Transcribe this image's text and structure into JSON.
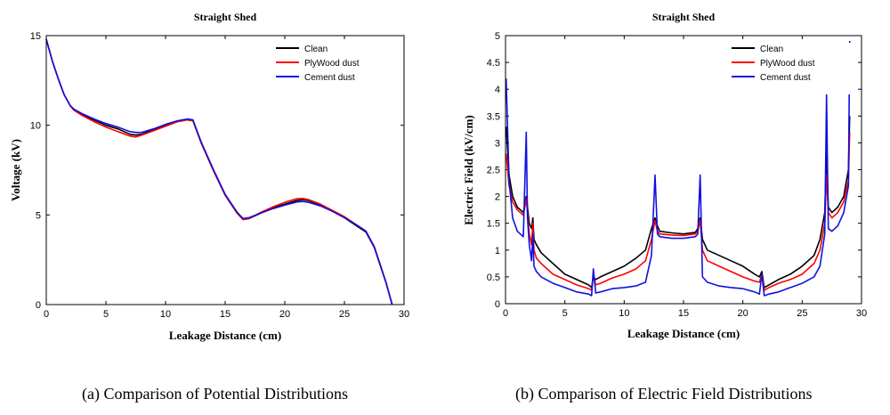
{
  "figure": {
    "captions": [
      "(a)   Comparison of Potential Distributions",
      "(b)   Comparison of Electric Field Distributions"
    ]
  },
  "series_colors": {
    "Clean": "#000000",
    "PlyWood dust": "#ff0000",
    "Cement dust": "#1010e0"
  },
  "chart_data": [
    {
      "type": "line",
      "title": "Straight Shed",
      "xlabel": "Leakage Distance  (cm)",
      "ylabel": "Voltage  (kV)",
      "xlim": [
        0,
        30
      ],
      "ylim": [
        0,
        15
      ],
      "xticks": [
        0,
        5,
        10,
        15,
        20,
        25,
        30
      ],
      "yticks": [
        0,
        5,
        10,
        15
      ],
      "grid": false,
      "legend_position": "top-right",
      "series": [
        {
          "name": "Clean",
          "x": [
            0,
            0.5,
            1.0,
            1.5,
            2.0,
            2.3,
            3,
            4,
            5,
            6,
            7,
            7.5,
            8,
            9,
            10,
            11,
            11.8,
            12.3,
            13,
            14,
            15,
            16,
            16.5,
            17,
            18,
            19,
            20,
            21,
            21.5,
            22,
            23,
            24,
            25,
            26,
            26.8,
            27.5,
            28,
            28.5,
            29
          ],
          "y": [
            14.8,
            13.6,
            12.6,
            11.7,
            11.1,
            10.9,
            10.6,
            10.3,
            10.0,
            9.8,
            9.5,
            9.45,
            9.5,
            9.75,
            10.0,
            10.2,
            10.3,
            10.25,
            9.0,
            7.5,
            6.1,
            5.1,
            4.75,
            4.8,
            5.1,
            5.4,
            5.6,
            5.8,
            5.85,
            5.8,
            5.55,
            5.2,
            4.85,
            4.4,
            4.05,
            3.2,
            2.2,
            1.2,
            0
          ]
        },
        {
          "name": "PlyWood dust",
          "x": [
            0,
            0.5,
            1.0,
            1.5,
            2.0,
            2.3,
            3,
            4,
            5,
            6,
            7,
            7.5,
            8,
            9,
            10,
            11,
            11.8,
            12.3,
            13,
            14,
            15,
            16,
            16.5,
            17,
            18,
            19,
            20,
            21,
            21.5,
            22,
            23,
            24,
            25,
            26,
            26.8,
            27.5,
            28,
            28.5,
            29
          ],
          "y": [
            14.8,
            13.6,
            12.6,
            11.7,
            11.1,
            10.85,
            10.55,
            10.2,
            9.9,
            9.65,
            9.4,
            9.35,
            9.45,
            9.7,
            9.95,
            10.2,
            10.3,
            10.25,
            9.0,
            7.5,
            6.1,
            5.1,
            4.75,
            4.8,
            5.15,
            5.45,
            5.7,
            5.9,
            5.92,
            5.85,
            5.6,
            5.25,
            4.9,
            4.45,
            4.1,
            3.25,
            2.25,
            1.2,
            0
          ]
        },
        {
          "name": "Cement dust",
          "x": [
            0,
            0.5,
            1.0,
            1.5,
            2.0,
            2.3,
            3,
            4,
            5,
            6,
            7,
            7.5,
            8,
            9,
            10,
            11,
            11.8,
            12.3,
            13,
            14,
            15,
            16,
            16.5,
            17,
            18,
            19,
            20,
            21,
            21.5,
            22,
            23,
            24,
            25,
            26,
            26.8,
            27.5,
            28,
            28.5,
            29
          ],
          "y": [
            14.8,
            13.6,
            12.6,
            11.7,
            11.1,
            10.9,
            10.65,
            10.35,
            10.1,
            9.9,
            9.65,
            9.6,
            9.6,
            9.8,
            10.05,
            10.25,
            10.35,
            10.3,
            9.05,
            7.55,
            6.15,
            5.15,
            4.8,
            4.85,
            5.1,
            5.35,
            5.55,
            5.72,
            5.75,
            5.7,
            5.5,
            5.2,
            4.85,
            4.45,
            4.1,
            3.2,
            2.2,
            1.2,
            0
          ]
        }
      ]
    },
    {
      "type": "line",
      "title": "Straight Shed",
      "xlabel": "Leakage Distance  (cm)",
      "ylabel": "Electric Field  (kV/cm)",
      "xlim": [
        0,
        30
      ],
      "ylim": [
        0,
        5
      ],
      "xticks": [
        0,
        5,
        10,
        15,
        20,
        25,
        30
      ],
      "yticks": [
        0,
        0.5,
        1,
        1.5,
        2,
        2.5,
        3,
        3.5,
        4,
        4.5,
        5
      ],
      "grid": false,
      "legend_position": "top-right",
      "series": [
        {
          "name": "Clean",
          "x": [
            0.05,
            0.3,
            0.6,
            1.0,
            1.5,
            1.75,
            1.85,
            2.0,
            2.2,
            2.3,
            2.4,
            2.6,
            3,
            4,
            5,
            6,
            7.0,
            7.25,
            7.4,
            7.6,
            8,
            9,
            10,
            11,
            11.8,
            12.3,
            12.6,
            12.8,
            13,
            14,
            15,
            16,
            16.2,
            16.4,
            16.6,
            17,
            18,
            19,
            20,
            21,
            21.4,
            21.6,
            21.8,
            22.2,
            23,
            24,
            25,
            26,
            26.5,
            26.9,
            27.05,
            27.2,
            27.5,
            28,
            28.5,
            28.9,
            29.0
          ],
          "y": [
            3.3,
            2.4,
            2.0,
            1.8,
            1.7,
            2.0,
            1.8,
            1.5,
            1.4,
            1.6,
            1.2,
            1.1,
            0.95,
            0.75,
            0.55,
            0.45,
            0.35,
            0.3,
            0.5,
            0.45,
            0.5,
            0.6,
            0.7,
            0.85,
            1.0,
            1.4,
            1.6,
            1.45,
            1.35,
            1.32,
            1.3,
            1.33,
            1.4,
            1.6,
            1.2,
            1.0,
            0.9,
            0.8,
            0.7,
            0.55,
            0.5,
            0.6,
            0.3,
            0.35,
            0.45,
            0.55,
            0.7,
            0.9,
            1.2,
            1.7,
            2.8,
            1.8,
            1.7,
            1.8,
            2.0,
            2.5,
            3.5
          ]
        },
        {
          "name": "PlyWood dust",
          "x": [
            0.05,
            0.3,
            0.6,
            1.0,
            1.5,
            1.75,
            1.85,
            2.0,
            2.2,
            2.3,
            2.4,
            2.6,
            3,
            4,
            5,
            6,
            7.0,
            7.25,
            7.4,
            7.6,
            8,
            9,
            10,
            11,
            11.8,
            12.3,
            12.6,
            12.8,
            13,
            14,
            15,
            16,
            16.2,
            16.4,
            16.6,
            17,
            18,
            19,
            20,
            21,
            21.4,
            21.6,
            21.8,
            22.2,
            23,
            24,
            25,
            26,
            26.5,
            26.9,
            27.05,
            27.2,
            27.5,
            28,
            28.5,
            28.9,
            29.0
          ],
          "y": [
            2.8,
            2.2,
            1.9,
            1.75,
            1.65,
            1.95,
            1.7,
            1.3,
            1.1,
            1.5,
            1.0,
            0.85,
            0.75,
            0.55,
            0.45,
            0.35,
            0.28,
            0.25,
            0.55,
            0.35,
            0.38,
            0.48,
            0.55,
            0.65,
            0.8,
            1.2,
            1.55,
            1.35,
            1.3,
            1.28,
            1.27,
            1.3,
            1.35,
            1.55,
            1.0,
            0.8,
            0.7,
            0.6,
            0.5,
            0.42,
            0.4,
            0.55,
            0.25,
            0.3,
            0.38,
            0.45,
            0.55,
            0.75,
            1.0,
            1.5,
            2.4,
            1.7,
            1.6,
            1.7,
            1.9,
            2.3,
            3.2
          ]
        },
        {
          "name": "Cement dust",
          "x": [
            0.05,
            0.3,
            0.6,
            1.0,
            1.5,
            1.75,
            1.85,
            2.0,
            2.2,
            2.3,
            2.4,
            2.6,
            3,
            4,
            5,
            6,
            7.0,
            7.25,
            7.4,
            7.6,
            8,
            9,
            10,
            11,
            11.8,
            12.3,
            12.6,
            12.8,
            13,
            14,
            15,
            16,
            16.2,
            16.4,
            16.6,
            17,
            18,
            19,
            20,
            21,
            21.4,
            21.6,
            21.8,
            22.2,
            23,
            24,
            25,
            26,
            26.5,
            26.9,
            27.05,
            27.2,
            27.5,
            28,
            28.5,
            28.9,
            29.0
          ],
          "y": [
            4.2,
            2.3,
            1.6,
            1.35,
            1.25,
            3.2,
            1.6,
            1.1,
            0.8,
            1.3,
            0.7,
            0.6,
            0.5,
            0.38,
            0.3,
            0.22,
            0.18,
            0.15,
            0.65,
            0.2,
            0.22,
            0.28,
            0.3,
            0.33,
            0.4,
            0.9,
            2.4,
            1.3,
            1.25,
            1.22,
            1.22,
            1.25,
            1.3,
            2.4,
            0.5,
            0.4,
            0.33,
            0.3,
            0.28,
            0.22,
            0.18,
            0.55,
            0.15,
            0.18,
            0.22,
            0.3,
            0.38,
            0.5,
            0.7,
            1.3,
            3.9,
            1.4,
            1.35,
            1.45,
            1.7,
            2.2,
            4.9
          ]
        }
      ]
    }
  ]
}
